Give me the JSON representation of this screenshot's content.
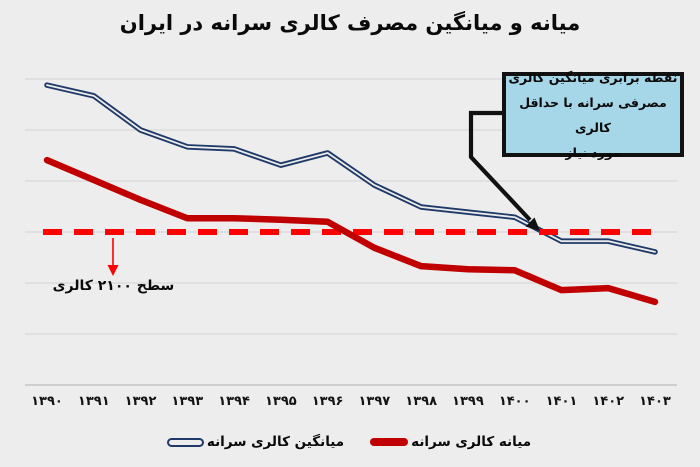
{
  "title": "میانه و میانگین مصرف کالری سرانه در ایران",
  "annotations": {
    "callout": {
      "lines": [
        "نقطه برابری میانگین کالری",
        "مصرفی سرانه با حداقل کالری",
        "مورد نیاز"
      ],
      "bg_color": "#a6d7e8",
      "border_color": "#111111"
    },
    "threshold_label": "سطح ۲۱۰۰ کالری"
  },
  "legend": [
    {
      "label": "میانگین کالری سرانه",
      "color": "#1f3a68",
      "style": "outline"
    },
    {
      "label": "میانه کالری سرانه",
      "color": "#c00000",
      "style": "solid"
    }
  ],
  "colors": {
    "background": "#ededed",
    "gridline": "#d9d9d9",
    "axis": "#c4c4c4",
    "mean_line": "#1f3a68",
    "median_line": "#c00000",
    "reference_line": "#fe0000",
    "connector": "#111111"
  },
  "chart_data": {
    "type": "line",
    "title": "میانه و میانگین مصرف کالری سرانه در ایران",
    "categories": [
      "۱۳۹۰",
      "۱۳۹۱",
      "۱۳۹۲",
      "۱۳۹۳",
      "۱۳۹۴",
      "۱۳۹۵",
      "۱۳۹۶",
      "۱۳۹۷",
      "۱۳۹۸",
      "۱۳۹۹",
      "۱۴۰۰",
      "۱۴۰۱",
      "۱۴۰۲",
      "۱۴۰۳"
    ],
    "series": [
      {
        "name": "میانگین کالری سرانه",
        "color": "#1f3a68",
        "line_style": "double-outline",
        "values": [
          2388,
          2367,
          2300,
          2267,
          2263,
          2231,
          2255,
          2192,
          2149,
          2139,
          2129,
          2082,
          2082,
          2061
        ]
      },
      {
        "name": "میانه کالری سرانه",
        "color": "#c00000",
        "line_style": "thick-solid",
        "values": [
          2241,
          2202,
          2163,
          2127,
          2127,
          2124,
          2120,
          2069,
          2033,
          2027,
          2025,
          1986,
          1990,
          1963
        ]
      }
    ],
    "reference_line": {
      "value": 2100,
      "label": "سطح ۲۱۰۰ کالری",
      "color": "#fe0000",
      "style": "dashed"
    },
    "xlabel": "",
    "ylabel": "",
    "units": "kcal per capita (estimated; no y-axis labels shown, scale inferred from 2100 reference line and gridlines ≈ 100 kcal apart)",
    "ylim": [
      1950,
      2450
    ],
    "grid": "horizontal",
    "legend_position": "bottom"
  }
}
